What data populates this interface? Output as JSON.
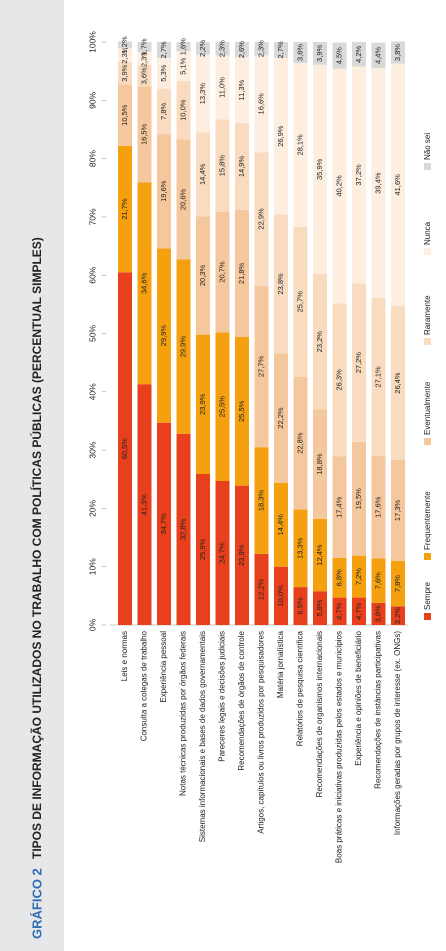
{
  "chart_data": {
    "type": "stacked-bar",
    "figure_label": "GRÁFICO 2",
    "title": "TIPOS DE INFORMAÇÃO UTILIZADOS NO TRABALHO COM POLÍTICAS PÚBLICAS (PERCENTUAL SIMPLES)",
    "categories": [
      "Leis e normas",
      "Consulta a colegas de trabalho",
      "Experiência pessoal",
      "Notas técnicas produzidas por órgãos federais",
      "Sistemas informacionais e bases de dados governamentais",
      "Pareceres legais e decisões judiciais",
      "Recomendações de órgãos de controle",
      "Artigos, capítulos ou livros produzidos por pesquisadores",
      "Matéria jornalística",
      "Relatórios de pesquisa científica",
      "Recomendações de organismos internacionais",
      "Boas práticas e iniciativas produzidas pelos estados e municípios",
      "Experiência e opiniões de beneficiário",
      "Recomendações de instâncias participativas",
      "Informações geradas por grupos de interesse (ex. ONGs)"
    ],
    "series": [
      {
        "name": "Sempre",
        "color": "#e8401c",
        "values": [
          60.5,
          41.3,
          34.7,
          32.8,
          25.9,
          24.7,
          23.9,
          12.2,
          10.0,
          6.5,
          5.8,
          4.7,
          4.7,
          3.8,
          3.2
        ],
        "value_labels": [
          "60,5%",
          "41,3%",
          "34,7%",
          "32,8%",
          "25,9%",
          "24,7%",
          "23,9%",
          "12,2%",
          "10,0%",
          "6,5%",
          "5,8%",
          "4,7%",
          "4,7%",
          "3,8%",
          "3,2%"
        ]
      },
      {
        "name": "Frequentemente",
        "color": "#f5a00f",
        "values": [
          21.7,
          34.6,
          29.9,
          29.9,
          23.9,
          25.5,
          25.5,
          18.3,
          14.4,
          13.3,
          12.4,
          6.8,
          7.2,
          7.6,
          7.8
        ],
        "value_labels": [
          "21,7%",
          "34,6%",
          "29,9%",
          "29,9%",
          "23,9%",
          "25,5%",
          "25,5%",
          "18,3%",
          "14,4%",
          "13,3%",
          "12,4%",
          "6,8%",
          "7,2%",
          "7,6%",
          "7,8%"
        ]
      },
      {
        "name": "Eventualmente",
        "color": "#f5c79c",
        "values": [
          10.5,
          16.5,
          19.6,
          20.6,
          20.3,
          20.7,
          21.8,
          27.7,
          22.2,
          22.8,
          18.8,
          17.4,
          19.5,
          17.6,
          17.3
        ],
        "value_labels": [
          "10,5%",
          "16,5%",
          "19,6%",
          "20,6%",
          "20,3%",
          "20,7%",
          "21,8%",
          "27,7%",
          "22,2%",
          "22,8%",
          "18,8%",
          "17,4%",
          "19,5%",
          "17,6%",
          "17,3%"
        ]
      },
      {
        "name": "Raramente",
        "color": "#f9dcc0",
        "values": [
          3.9,
          3.6,
          7.8,
          10.0,
          14.4,
          15.8,
          14.9,
          22.9,
          23.8,
          25.7,
          23.2,
          26.3,
          27.2,
          27.1,
          26.4
        ],
        "value_labels": [
          "3,9%",
          "3,6%",
          "7,8%",
          "10,0%",
          "14,4%",
          "15,8%",
          "14,9%",
          "22,9%",
          "23,8%",
          "25,7%",
          "23,2%",
          "26,3%",
          "27,2%",
          "27,1%",
          "26,4%"
        ]
      },
      {
        "name": "Nunca",
        "color": "#fdeee0",
        "values": [
          2.3,
          2.3,
          5.3,
          5.1,
          13.3,
          11.0,
          11.3,
          16.6,
          26.9,
          28.1,
          35.9,
          40.2,
          37.2,
          39.4,
          41.6
        ],
        "value_labels": [
          "2,3%",
          "2,3%",
          "5,3%",
          "5,1%",
          "13,3%",
          "11,0%",
          "11,3%",
          "16,6%",
          "26,9%",
          "28,1%",
          "35,9%",
          "40,2%",
          "37,2%",
          "39,4%",
          "41,6%"
        ]
      },
      {
        "name": "Não sei",
        "color": "#d9d9d9",
        "values": [
          1.2,
          1.7,
          2.7,
          1.6,
          2.2,
          2.3,
          2.6,
          2.3,
          2.7,
          3.6,
          3.9,
          4.5,
          4.2,
          4.4,
          3.8
        ],
        "value_labels": [
          "1,2%",
          "1,7%",
          "2,7%",
          "1,6%",
          "2,2%",
          "2,3%",
          "2,6%",
          "2,3%",
          "2,7%",
          "3,6%",
          "3,9%",
          "4,5%",
          "4,2%",
          "4,4%",
          "3,8%"
        ]
      }
    ],
    "xlim": [
      0,
      100
    ],
    "xticks": [
      {
        "value": 0,
        "label": "0%"
      },
      {
        "value": 10,
        "label": "10%"
      },
      {
        "value": 20,
        "label": "20%"
      },
      {
        "value": 30,
        "label": "30%"
      },
      {
        "value": 40,
        "label": "40%"
      },
      {
        "value": 50,
        "label": "50%"
      },
      {
        "value": 60,
        "label": "60%"
      },
      {
        "value": 70,
        "label": "70%"
      },
      {
        "value": 80,
        "label": "80%"
      },
      {
        "value": 90,
        "label": "90%"
      },
      {
        "value": 100,
        "label": "100%"
      }
    ],
    "legend": "bottom"
  }
}
